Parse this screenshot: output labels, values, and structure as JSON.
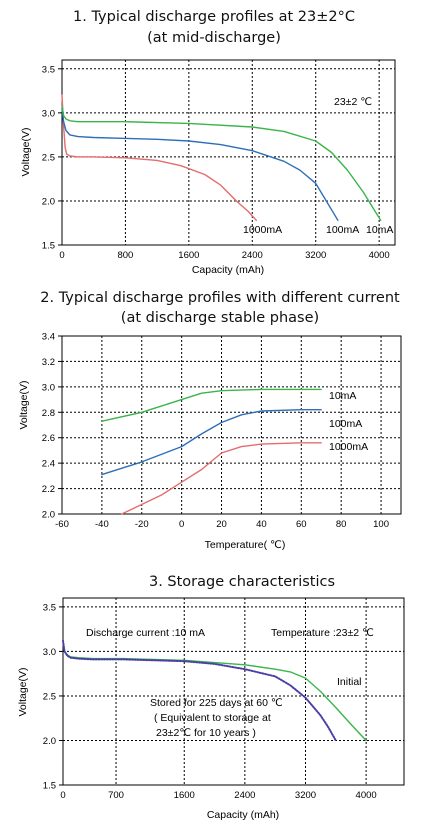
{
  "chart_data": [
    {
      "type": "line",
      "title": "1. Typical discharge profiles at 23±2°C",
      "subtitle": "(at mid-discharge)",
      "xlabel": "Capacity (mAh)",
      "ylabel": "Voltage(V)",
      "xlim": [
        0,
        4200
      ],
      "ylim": [
        1.5,
        3.6
      ],
      "xticks": [
        "0",
        "800",
        "1600",
        "2400",
        "3200",
        "4000"
      ],
      "yticks": [
        "1.5",
        "2.0",
        "2.5",
        "3.0",
        "3.5"
      ],
      "grid": true,
      "annotations": [
        "23±2 ℃"
      ],
      "series": [
        {
          "name": "1000mA",
          "color": "#e66c6c",
          "x": [
            0,
            20,
            40,
            60,
            100,
            200,
            400,
            800,
            1200,
            1500,
            1800,
            2000,
            2200,
            2350,
            2450
          ],
          "y": [
            3.2,
            2.85,
            2.6,
            2.53,
            2.51,
            2.5,
            2.5,
            2.49,
            2.46,
            2.4,
            2.3,
            2.18,
            2.0,
            1.88,
            1.78
          ]
        },
        {
          "name": "100mA",
          "color": "#2e6fb8",
          "x": [
            0,
            20,
            50,
            100,
            200,
            400,
            800,
            1200,
            1600,
            2000,
            2400,
            2800,
            3000,
            3200,
            3300,
            3400,
            3480
          ],
          "y": [
            3.05,
            2.9,
            2.8,
            2.75,
            2.73,
            2.72,
            2.71,
            2.7,
            2.68,
            2.64,
            2.57,
            2.45,
            2.35,
            2.2,
            2.05,
            1.9,
            1.78
          ]
        },
        {
          "name": "10mA",
          "color": "#3bb54a",
          "x": [
            0,
            20,
            50,
            100,
            200,
            400,
            800,
            1600,
            2400,
            2800,
            3200,
            3400,
            3600,
            3800,
            3950,
            4020
          ],
          "y": [
            3.08,
            2.97,
            2.93,
            2.91,
            2.9,
            2.9,
            2.9,
            2.88,
            2.84,
            2.79,
            2.68,
            2.55,
            2.35,
            2.1,
            1.88,
            1.78
          ]
        }
      ]
    },
    {
      "type": "line",
      "title": "2. Typical discharge profiles with different current",
      "subtitle": "(at discharge stable phase)",
      "xlabel": "Temperature( ℃)",
      "ylabel": "Voltage(V)",
      "xlim": [
        -60,
        110
      ],
      "ylim": [
        2.0,
        3.4
      ],
      "xticks": [
        "-60",
        "-40",
        "-20",
        "0",
        "20",
        "40",
        "60",
        "80",
        "100"
      ],
      "yticks": [
        "2.0",
        "2.2",
        "2.4",
        "2.6",
        "2.8",
        "3.0",
        "3.2",
        "3.4"
      ],
      "grid": true,
      "series": [
        {
          "name": "10mA",
          "color": "#3bb54a",
          "x": [
            -40,
            -20,
            0,
            10,
            20,
            40,
            60,
            70
          ],
          "y": [
            2.73,
            2.8,
            2.9,
            2.95,
            2.97,
            2.98,
            2.98,
            2.98
          ]
        },
        {
          "name": "100mA",
          "color": "#2e6fb8",
          "x": [
            -40,
            -20,
            0,
            10,
            20,
            30,
            40,
            60,
            70
          ],
          "y": [
            2.31,
            2.41,
            2.53,
            2.63,
            2.72,
            2.78,
            2.81,
            2.82,
            2.82
          ]
        },
        {
          "name": "1000mA",
          "color": "#e66c6c",
          "x": [
            -30,
            -10,
            0,
            10,
            20,
            30,
            40,
            60,
            70
          ],
          "y": [
            2.0,
            2.15,
            2.25,
            2.35,
            2.48,
            2.53,
            2.55,
            2.56,
            2.56
          ]
        }
      ]
    },
    {
      "type": "line",
      "title": "3. Storage characteristics",
      "xlabel": "Capacity (mAh)",
      "ylabel": "Voltage(V)",
      "xlim": [
        0,
        4500
      ],
      "ylim": [
        1.5,
        3.6
      ],
      "xticks": [
        "0",
        "700",
        "1600",
        "2400",
        "3200",
        "4000"
      ],
      "yticks": [
        "1.5",
        "2.0",
        "2.5",
        "3.0",
        "3.5"
      ],
      "grid": true,
      "annotations": [
        "Discharge current :10 mA",
        "Temperature :23±2 ℃",
        "Stored for 225 days at 60  ℃",
        "( Equivalent to storage at",
        "23±2℃ for 10 years  )"
      ],
      "series": [
        {
          "name": "Initial",
          "color": "#3bb54a",
          "x": [
            0,
            20,
            60,
            100,
            200,
            400,
            800,
            1600,
            2400,
            2800,
            3000,
            3200,
            3400,
            3600,
            3800,
            4000
          ],
          "y": [
            3.1,
            3.0,
            2.96,
            2.94,
            2.93,
            2.92,
            2.92,
            2.9,
            2.85,
            2.8,
            2.77,
            2.7,
            2.55,
            2.37,
            2.18,
            2.0
          ]
        },
        {
          "name": "Stored",
          "color": "#4a3fa8",
          "x": [
            0,
            20,
            60,
            100,
            200,
            400,
            800,
            1600,
            2000,
            2400,
            2800,
            3000,
            3200,
            3400,
            3500,
            3600
          ],
          "y": [
            3.12,
            3.0,
            2.95,
            2.93,
            2.92,
            2.91,
            2.91,
            2.89,
            2.86,
            2.8,
            2.72,
            2.62,
            2.48,
            2.28,
            2.15,
            2.0
          ]
        }
      ]
    }
  ]
}
